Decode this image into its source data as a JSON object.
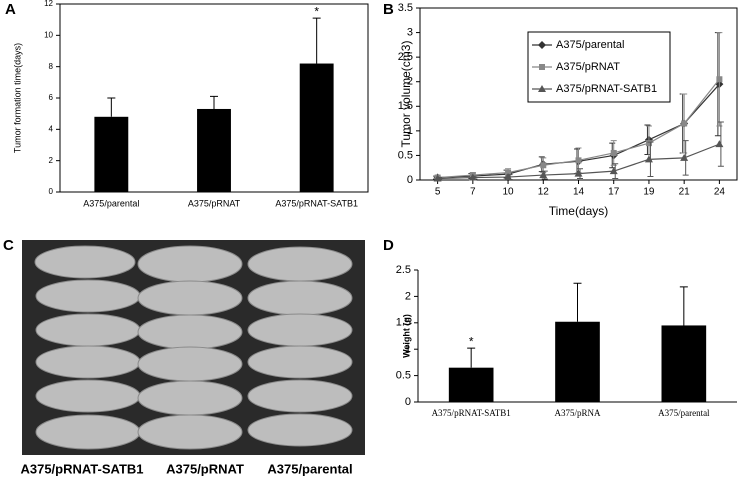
{
  "chart_data": [
    {
      "type": "bar",
      "panel": "A",
      "ylabel": "Tumor formation time(days)",
      "categories": [
        "A375/parental",
        "A375/pRNAT",
        "A375/pRNAT-SATB1"
      ],
      "values": [
        4.8,
        5.3,
        8.2
      ],
      "errors": [
        1.2,
        0.8,
        2.9
      ],
      "color": "#000000",
      "ylim": [
        0,
        12
      ],
      "yticks": [
        0,
        2,
        4,
        6,
        8,
        10,
        12
      ],
      "annotations": [
        {
          "category": 2,
          "text": "*"
        }
      ]
    },
    {
      "type": "line",
      "panel": "B",
      "xlabel": "Time(days)",
      "ylabel": "Tumor volume(cm3)",
      "categories": [
        "5",
        "7",
        "10",
        "12",
        "14",
        "17",
        "19",
        "21",
        "24"
      ],
      "ylim": [
        0,
        3.5
      ],
      "yticks": [
        0,
        0.5,
        1,
        1.5,
        2,
        2.5,
        3,
        3.5
      ],
      "legend": "upper left",
      "series": [
        {
          "name": "A375/parental",
          "color": "#333333",
          "marker": "diamond",
          "values": [
            0.05,
            0.08,
            0.12,
            0.32,
            0.38,
            0.5,
            0.82,
            1.15,
            1.95
          ],
          "errors": [
            0.03,
            0.05,
            0.08,
            0.15,
            0.25,
            0.25,
            0.3,
            0.6,
            1.05
          ]
        },
        {
          "name": "A375/pRNAT",
          "color": "#888888",
          "marker": "square",
          "values": [
            0.05,
            0.1,
            0.15,
            0.3,
            0.4,
            0.55,
            0.75,
            1.15,
            2.05
          ],
          "errors": [
            0.03,
            0.05,
            0.08,
            0.15,
            0.25,
            0.25,
            0.35,
            0.6,
            0.95
          ]
        },
        {
          "name": "A375/pRNAT-SATB1",
          "color": "#555555",
          "marker": "triangle",
          "values": [
            0.03,
            0.05,
            0.06,
            0.1,
            0.13,
            0.18,
            0.42,
            0.45,
            0.73
          ],
          "errors": [
            0.02,
            0.03,
            0.05,
            0.08,
            0.1,
            0.15,
            0.35,
            0.35,
            0.45
          ]
        }
      ]
    },
    {
      "type": "bar",
      "panel": "D",
      "ylabel": "Weight (g)",
      "categories": [
        "A375/pRNAT-SATB1",
        "A375/pRNA",
        "A375/parental"
      ],
      "values": [
        0.65,
        1.52,
        1.45
      ],
      "errors": [
        0.37,
        0.73,
        0.73
      ],
      "color": "#000000",
      "ylim": [
        0,
        2.5
      ],
      "yticks": [
        0,
        0.5,
        1,
        1.5,
        2,
        2.5
      ],
      "annotations": [
        {
          "category": 0,
          "text": "*"
        }
      ]
    }
  ],
  "photo": {
    "panel": "C",
    "labels": [
      "A375/pRNAT-SATB1",
      "A375/pRNAT",
      "A375/parental"
    ]
  }
}
